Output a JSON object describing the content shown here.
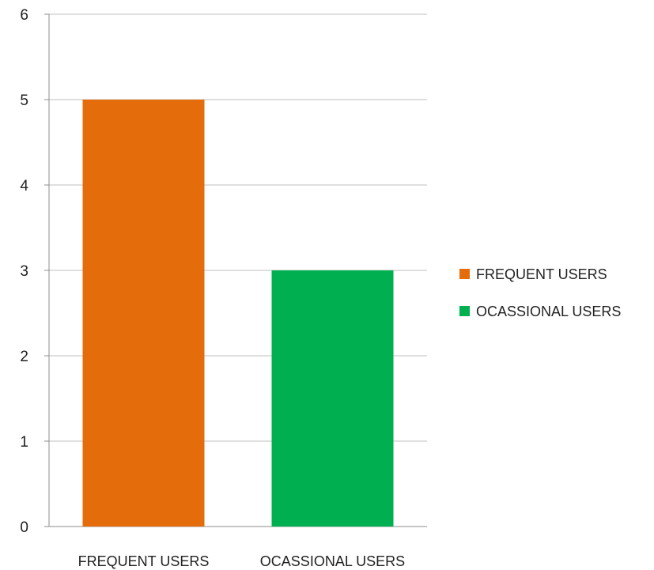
{
  "chart_data": {
    "type": "bar",
    "categories": [
      "FREQUENT USERS",
      "OCASSIONAL USERS"
    ],
    "values": [
      5,
      3
    ],
    "bar_colors": [
      "#E46C0A",
      "#00B050"
    ],
    "title": "",
    "xlabel": "",
    "ylabel": "",
    "ylim": [
      0,
      6
    ],
    "yticks": [
      "0",
      "1",
      "2",
      "3",
      "4",
      "5",
      "6"
    ],
    "grid": true,
    "gridline_color": "#BFBFBF",
    "legend": {
      "placement": "right",
      "entries": [
        {
          "label": "FREQUENT USERS",
          "color": "#E46C0A"
        },
        {
          "label": "OCASSIONAL USERS",
          "color": "#00B050"
        }
      ]
    }
  }
}
